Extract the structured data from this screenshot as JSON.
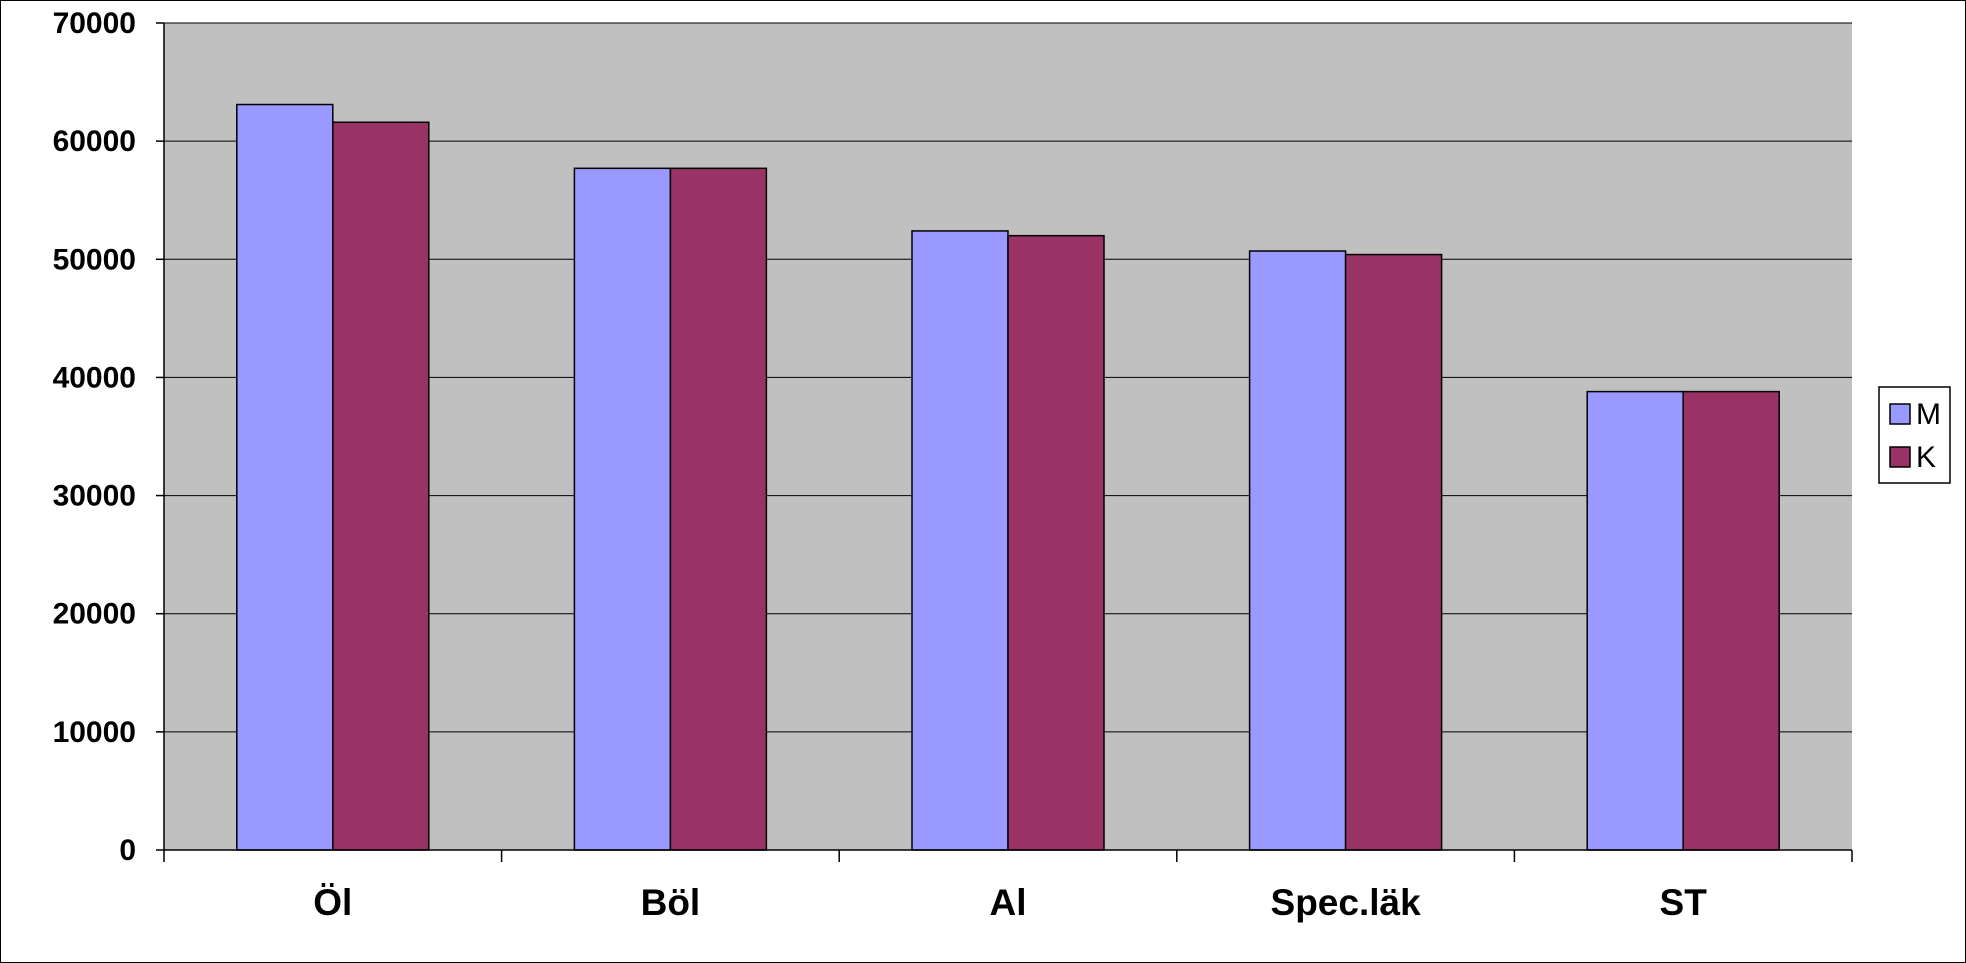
{
  "chart_data": {
    "type": "bar",
    "categories": [
      "Öl",
      "Böl",
      "Al",
      "Spec.läk",
      "ST"
    ],
    "series": [
      {
        "name": "M",
        "values": [
          63100,
          57700,
          52400,
          50700,
          38800
        ],
        "color": "#9999ff"
      },
      {
        "name": "K",
        "values": [
          61600,
          57700,
          52000,
          50400,
          38800
        ],
        "color": "#993366"
      }
    ],
    "ylim": [
      0,
      70000
    ],
    "yticks": [
      0,
      10000,
      20000,
      30000,
      40000,
      50000,
      60000,
      70000
    ],
    "ytick_labels": [
      "0",
      "10000",
      "20000",
      "30000",
      "40000",
      "50000",
      "60000",
      "70000"
    ],
    "title": "",
    "xlabel": "",
    "ylabel": "",
    "grid": true,
    "legend_position": "right",
    "plot_background": "#c0c0c0",
    "gridline_color": "#000000"
  }
}
